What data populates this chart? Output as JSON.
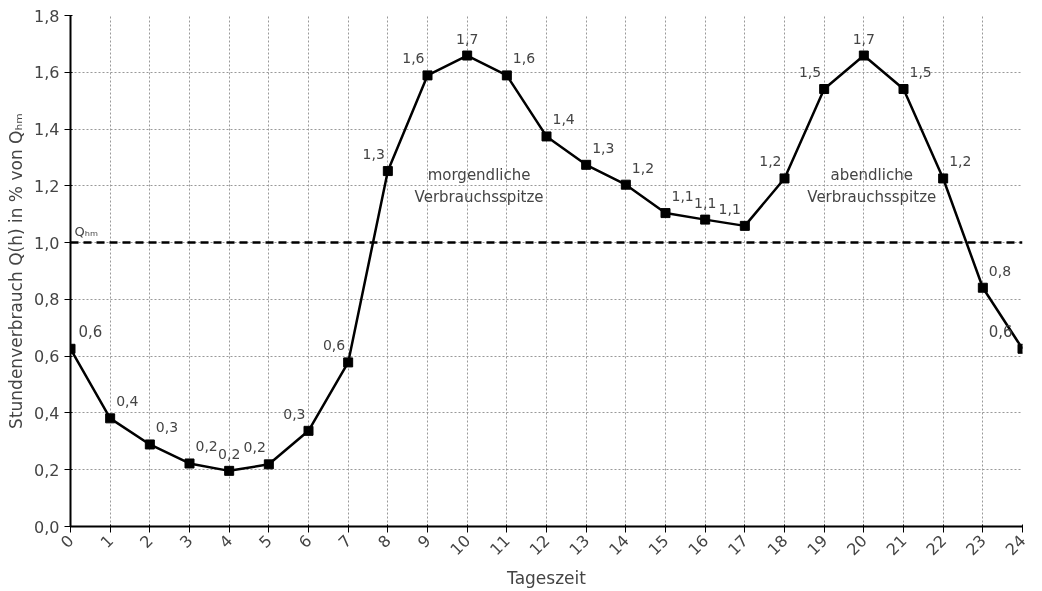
{
  "chart_data": {
    "type": "line",
    "xlabel": "Tageszeit",
    "ylabel": "Stundenverbrauch Q(h) in % von Qₕₘ",
    "x": [
      0,
      1,
      2,
      3,
      4,
      5,
      6,
      7,
      8,
      9,
      10,
      11,
      12,
      13,
      14,
      15,
      16,
      17,
      18,
      19,
      20,
      21,
      22,
      23,
      24
    ],
    "series": [
      {
        "color": "#000000",
        "values": [
          0.626,
          0.381,
          0.289,
          0.222,
          0.196,
          0.219,
          0.337,
          0.578,
          1.252,
          1.589,
          1.659,
          1.589,
          1.374,
          1.274,
          1.204,
          1.104,
          1.081,
          1.059,
          1.226,
          1.541,
          1.659,
          1.541,
          1.226,
          0.841,
          0.626
        ],
        "value_labels": [
          "0,6",
          "0,4",
          "0,3",
          "0,2",
          "0,2",
          "0,2",
          "0,3",
          "0,6",
          "1,3",
          "1,6",
          "1,7",
          "1,6",
          "1,4",
          "1,3",
          "1,2",
          "1,1",
          "1,1",
          "1,1",
          "1,2",
          "1,5",
          "1,7",
          "1,5",
          "1,2",
          "0,8",
          "0,6"
        ]
      }
    ],
    "marker": "square",
    "line_style": "solid",
    "grid": true,
    "xlim": [
      0,
      24
    ],
    "xticks": [
      0,
      1,
      2,
      3,
      4,
      5,
      6,
      7,
      8,
      9,
      10,
      11,
      12,
      13,
      14,
      15,
      16,
      17,
      18,
      19,
      20,
      21,
      22,
      23,
      24
    ],
    "ylim": [
      0,
      1.8
    ],
    "yticks": [
      {
        "value": 0,
        "label": "0,0"
      },
      {
        "value": 0.2,
        "label": "0,2"
      },
      {
        "value": 0.4,
        "label": "0,4"
      },
      {
        "value": 0.6,
        "label": "0,6"
      },
      {
        "value": 0.8,
        "label": "0,8"
      },
      {
        "value": 1.0,
        "label": "1,0"
      },
      {
        "value": 1.2,
        "label": "1,2"
      },
      {
        "value": 1.4,
        "label": "1,4"
      },
      {
        "value": 1.6,
        "label": "1,6"
      },
      {
        "value": 1.8,
        "label": "1,8"
      }
    ],
    "ref_lines": [
      {
        "axis": "y",
        "value": 1.0,
        "label": "Qₕₘ",
        "color": "#000000",
        "line_style": "dashed"
      }
    ],
    "annotations": [
      "morgendliche\nVerbrauchsspitze",
      "abendliche\nVerbrauchsspitze"
    ]
  }
}
